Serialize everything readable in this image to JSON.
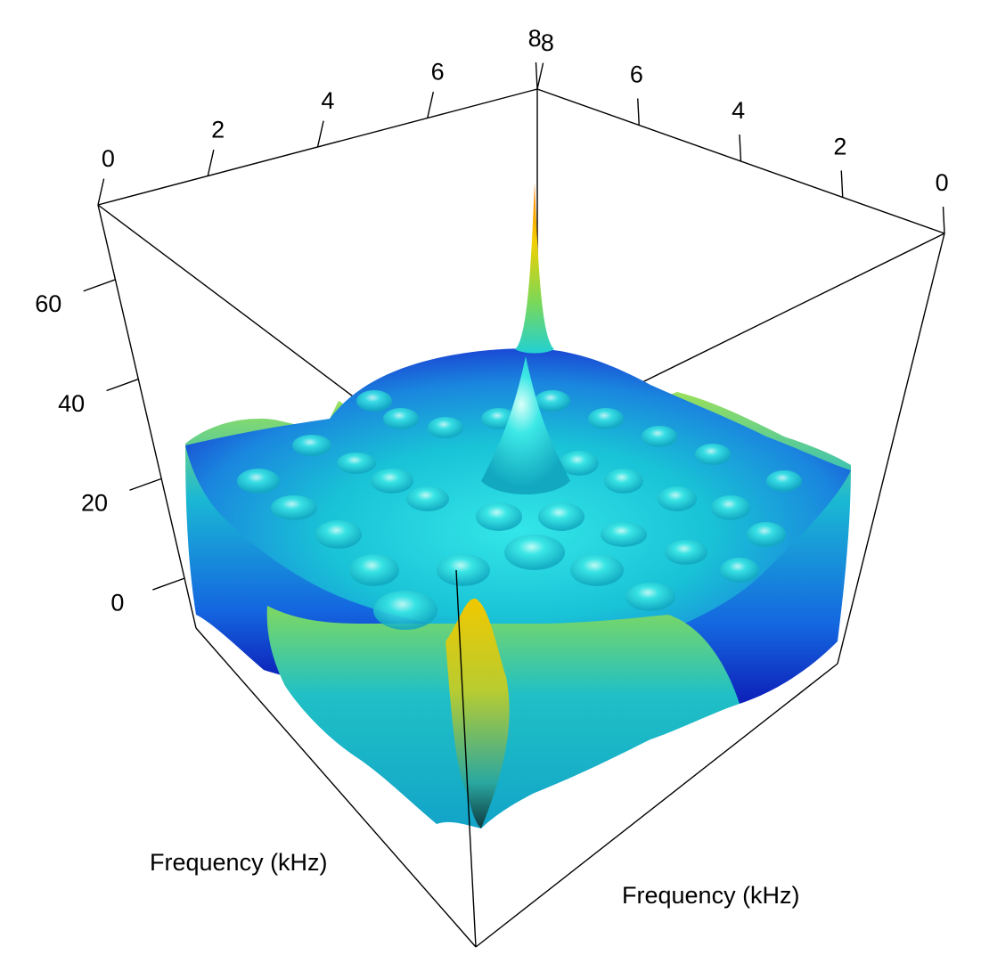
{
  "chart_data": {
    "type": "surface3d",
    "xlabel": "Frequency (kHz)",
    "ylabel": "Frequency (kHz)",
    "zlabel": "",
    "xlim": [
      0,
      8
    ],
    "ylim": [
      0,
      8
    ],
    "zlim": [
      -10,
      75
    ],
    "x_ticks": [
      "0",
      "2",
      "4",
      "6",
      "8"
    ],
    "y_ticks": [
      "0",
      "2",
      "4",
      "6",
      "8"
    ],
    "z_ticks": [
      "0",
      "20",
      "40",
      "60"
    ],
    "peaks": [
      {
        "x": 8,
        "y": 8,
        "z": 70
      },
      {
        "x": 0,
        "y": 0,
        "z": 45
      },
      {
        "x": 4,
        "y": 4,
        "z": 35
      },
      {
        "x": 6,
        "y": 6,
        "z": 33
      }
    ],
    "colormap": [
      "#0000c8",
      "#0a78e0",
      "#18c8d2",
      "#28e6e6",
      "#9be05a",
      "#f0d200",
      "#ff8c00"
    ]
  }
}
